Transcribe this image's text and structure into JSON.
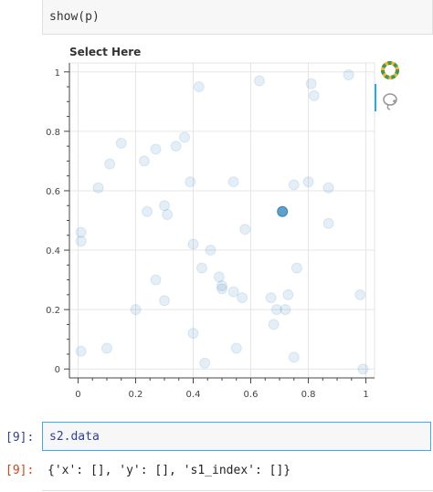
{
  "top_cell": {
    "code": "show(p)"
  },
  "chart_data": {
    "type": "scatter",
    "title": "Select Here",
    "xlabel": "",
    "ylabel": "",
    "xlim": [
      -0.03,
      1.03
    ],
    "ylim": [
      -0.03,
      1.03
    ],
    "xticks": [
      "0",
      "0.2",
      "0.4",
      "0.6",
      "0.8",
      "1"
    ],
    "yticks": [
      "0",
      "0.2",
      "0.4",
      "0.6",
      "0.8",
      "1"
    ],
    "grid": true,
    "points": [
      {
        "x": 0.42,
        "y": 0.95
      },
      {
        "x": 0.63,
        "y": 0.97
      },
      {
        "x": 0.81,
        "y": 0.96
      },
      {
        "x": 0.82,
        "y": 0.92
      },
      {
        "x": 0.94,
        "y": 0.99
      },
      {
        "x": 0.37,
        "y": 0.78
      },
      {
        "x": 0.15,
        "y": 0.76
      },
      {
        "x": 0.27,
        "y": 0.74
      },
      {
        "x": 0.34,
        "y": 0.75
      },
      {
        "x": 0.11,
        "y": 0.69
      },
      {
        "x": 0.23,
        "y": 0.7
      },
      {
        "x": 0.07,
        "y": 0.61
      },
      {
        "x": 0.39,
        "y": 0.63
      },
      {
        "x": 0.54,
        "y": 0.63
      },
      {
        "x": 0.75,
        "y": 0.62
      },
      {
        "x": 0.8,
        "y": 0.63
      },
      {
        "x": 0.87,
        "y": 0.61
      },
      {
        "x": 0.3,
        "y": 0.55
      },
      {
        "x": 0.24,
        "y": 0.53
      },
      {
        "x": 0.31,
        "y": 0.52
      },
      {
        "x": 0.01,
        "y": 0.46
      },
      {
        "x": 0.01,
        "y": 0.43
      },
      {
        "x": 0.58,
        "y": 0.47
      },
      {
        "x": 0.87,
        "y": 0.49
      },
      {
        "x": 0.4,
        "y": 0.42
      },
      {
        "x": 0.46,
        "y": 0.4
      },
      {
        "x": 0.43,
        "y": 0.34
      },
      {
        "x": 0.76,
        "y": 0.34
      },
      {
        "x": 0.27,
        "y": 0.3
      },
      {
        "x": 0.49,
        "y": 0.31
      },
      {
        "x": 0.5,
        "y": 0.28
      },
      {
        "x": 0.5,
        "y": 0.27
      },
      {
        "x": 0.54,
        "y": 0.26
      },
      {
        "x": 0.57,
        "y": 0.24
      },
      {
        "x": 0.67,
        "y": 0.24
      },
      {
        "x": 0.73,
        "y": 0.25
      },
      {
        "x": 0.98,
        "y": 0.25
      },
      {
        "x": 0.3,
        "y": 0.23
      },
      {
        "x": 0.2,
        "y": 0.2
      },
      {
        "x": 0.69,
        "y": 0.2
      },
      {
        "x": 0.72,
        "y": 0.2
      },
      {
        "x": 0.4,
        "y": 0.12
      },
      {
        "x": 0.68,
        "y": 0.15
      },
      {
        "x": 0.55,
        "y": 0.07
      },
      {
        "x": 0.01,
        "y": 0.06
      },
      {
        "x": 0.1,
        "y": 0.07
      },
      {
        "x": 0.75,
        "y": 0.04
      },
      {
        "x": 0.44,
        "y": 0.02
      },
      {
        "x": 0.99,
        "y": 0.0
      }
    ],
    "selected_point": {
      "x": 0.71,
      "y": 0.53
    },
    "colors": {
      "point": "#1f77b4",
      "grid": "#e5e5e5"
    }
  },
  "toolbar": {
    "logo_icon": "bokeh-logo-icon",
    "tool_icon": "lasso-select-icon",
    "accent": "#26aae1"
  },
  "cells": {
    "input_prompt": "[9]:",
    "input_code": "s2.data",
    "output_prompt": "[9]:",
    "output_text": "{'x': [], 'y': [], 's1_index': []}"
  }
}
